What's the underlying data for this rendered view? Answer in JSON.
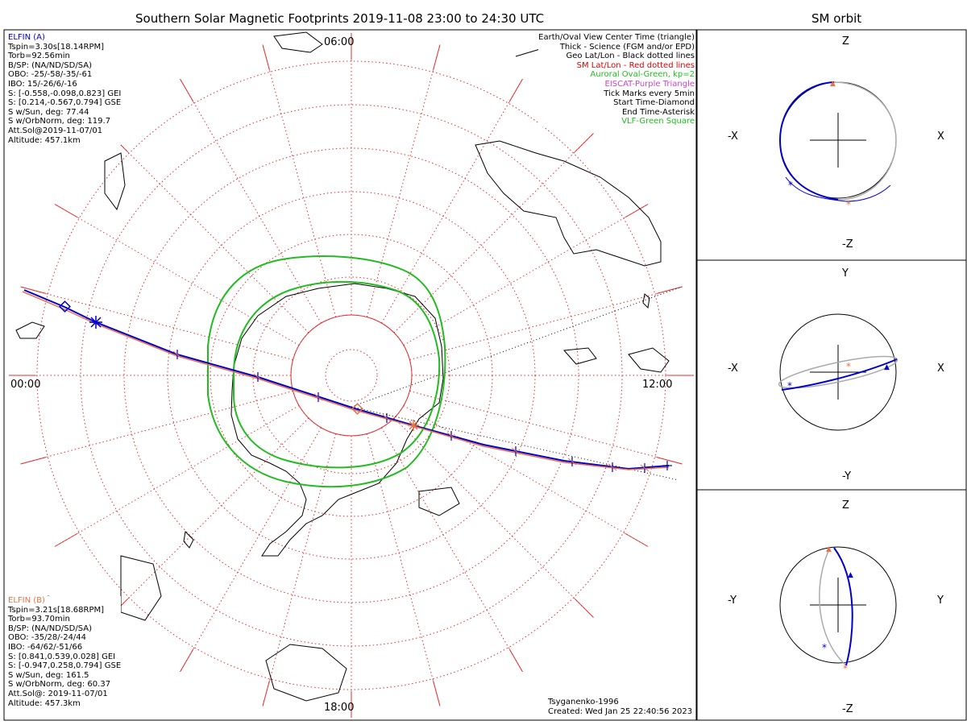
{
  "title": "Southern Solar Magnetic Footprints 2019-11-08 23:00 to 24:30 UTC",
  "orbit_title": "SM orbit",
  "map": {
    "mlt_labels": {
      "top": "06:00",
      "left": "00:00",
      "right": "12:00",
      "bottom": "18:00"
    }
  },
  "elfin_a": {
    "name": "ELFIN (A)",
    "color": "#0000cc",
    "lines": [
      "Tspin=3.30s[18.14RPM]",
      "Torb=92.56min",
      "B/SP: (NA/ND/SD/SA)",
      "OBO: -25/-58/-35/-61",
      "IBO: 15/-26/6/-16",
      "S: [-0.558,-0.098,0.823] GEI",
      "S: [0.214,-0.567,0.794] GSE",
      "S w/Sun, deg: 77.44",
      "S w/OrbNorm, deg: 119.7",
      "Att.Sol@2019-11-07/01",
      "Altitude: 457.1km"
    ]
  },
  "elfin_b": {
    "name": "ELFIN (B)",
    "color": "#e8724a",
    "lines": [
      "Tspin=3.21s[18.68RPM]",
      "Torb=93.70min",
      "B/SP: (NA/ND/SD/SA)",
      "OBO: -35/28/-24/44",
      "IBO: -64/62/-51/66",
      "S: [0.841,0.539,0.028] GEI",
      "S: [-0.947,0.258,0.794] GSE",
      "S w/Sun, deg: 161.5",
      "S w/OrbNorm, deg: 60.37",
      "Att.Sol@: 2019-11-07/01",
      "Altitude: 457.3km"
    ]
  },
  "legend": [
    {
      "text": "Earth/Oval View Center Time (triangle)",
      "color": "#000000"
    },
    {
      "text": "Thick - Science (FGM and/or EPD)",
      "color": "#000000"
    },
    {
      "text": "Geo Lat/Lon - Black dotted lines",
      "color": "#000000"
    },
    {
      "text": "SM Lat/Lon - Red dotted lines",
      "color": "#e00000"
    },
    {
      "text": "Auroral Oval-Green, kp=2",
      "color": "#22bb22"
    },
    {
      "text": "EISCAT-Purple Triangle",
      "color": "#cc44cc"
    },
    {
      "text": "Tick Marks every 5min",
      "color": "#000000"
    },
    {
      "text": "Start Time-Diamond",
      "color": "#000000"
    },
    {
      "text": "End Time-Asterisk",
      "color": "#000000"
    },
    {
      "text": "VLF-Green Square",
      "color": "#22bb22"
    }
  ],
  "credits": {
    "model": "Tsyganenko-1996",
    "created": "Created: Wed Jan 25 22:40:56 2023"
  },
  "orbit_panels": [
    {
      "left": "-X",
      "right": "X",
      "top": "Z",
      "bottom": "-Z"
    },
    {
      "left": "-X",
      "right": "X",
      "top": "Y",
      "bottom": "-Y"
    },
    {
      "left": "-Y",
      "right": "Y",
      "top": "Z",
      "bottom": "-Z"
    }
  ],
  "chart_data": {
    "type": "scatter",
    "title": "Southern Solar Magnetic Footprints 2019-11-08 23:00 to 24:30 UTC",
    "projection": "polar, south pole centered, magnetic local time around edge",
    "mlt_ticks": [
      "00:00",
      "06:00",
      "12:00",
      "18:00"
    ],
    "sm_latitude_circles_deg": [
      -80,
      -70,
      -60,
      -50,
      -40,
      -30,
      -20,
      -10
    ],
    "series": [
      {
        "name": "ELFIN (A)",
        "color": "#0000cc"
      },
      {
        "name": "ELFIN (B)",
        "color": "#e8724a"
      }
    ],
    "auroral_oval_kp": 2,
    "grid": true,
    "legend_position": "top-right"
  }
}
